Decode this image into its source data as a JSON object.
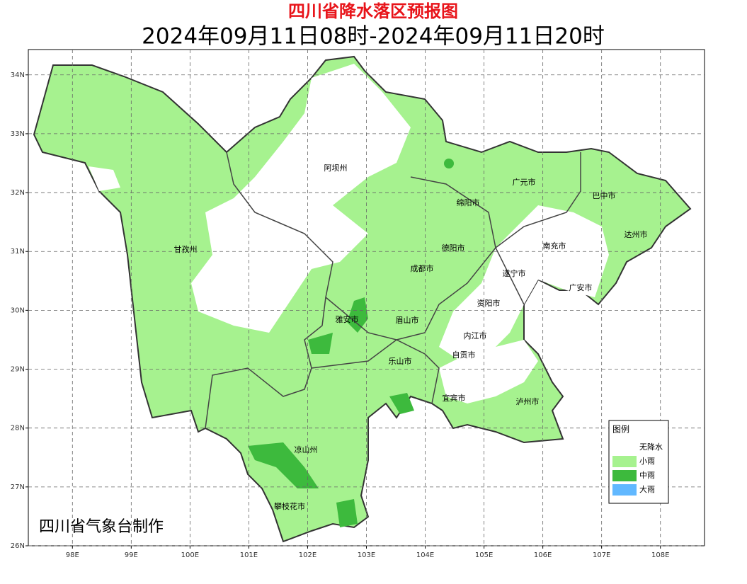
{
  "title": "四川省降水落区预报图",
  "subtitle": "2024年09月11日08时-2024年09月11日20时",
  "credit": "四川省气象台制作",
  "map": {
    "xlim": [
      97.25,
      108.75
    ],
    "ylim": [
      26,
      34.43
    ],
    "xticks": [
      {
        "value": 98,
        "label": "98E"
      },
      {
        "value": 99,
        "label": "99E"
      },
      {
        "value": 100,
        "label": "100E"
      },
      {
        "value": 101,
        "label": "101E"
      },
      {
        "value": 102,
        "label": "102E"
      },
      {
        "value": 103,
        "label": "103E"
      },
      {
        "value": 104,
        "label": "104E"
      },
      {
        "value": 105,
        "label": "105E"
      },
      {
        "value": 106,
        "label": "106E"
      },
      {
        "value": 107,
        "label": "107E"
      },
      {
        "value": 108,
        "label": "108E"
      }
    ],
    "yticks": [
      {
        "value": 26,
        "label": "26N"
      },
      {
        "value": 27,
        "label": "27N"
      },
      {
        "value": 28,
        "label": "28N"
      },
      {
        "value": 29,
        "label": "29N"
      },
      {
        "value": 30,
        "label": "30N"
      },
      {
        "value": 31,
        "label": "31N"
      },
      {
        "value": 32,
        "label": "32N"
      },
      {
        "value": 33,
        "label": "33N"
      },
      {
        "value": 34,
        "label": "34N"
      }
    ],
    "grid": true,
    "places": [
      "阿坝州",
      "甘孜州",
      "广元市",
      "巴中市",
      "绵阳市",
      "达州市",
      "德阳市",
      "南充市",
      "成都市",
      "遂宁市",
      "广安市",
      "资阳市",
      "雅安市",
      "眉山市",
      "内江市",
      "自贡市",
      "乐山市",
      "宜宾市",
      "泸州市",
      "凉山州",
      "攀枝花市"
    ]
  },
  "legend": {
    "title": "图例",
    "items": [
      {
        "label": "无降水",
        "color": "#ffffff"
      },
      {
        "label": "小雨",
        "color": "#a6f28f"
      },
      {
        "label": "中雨",
        "color": "#3dba3d"
      },
      {
        "label": "大雨",
        "color": "#61b8ff"
      }
    ]
  }
}
